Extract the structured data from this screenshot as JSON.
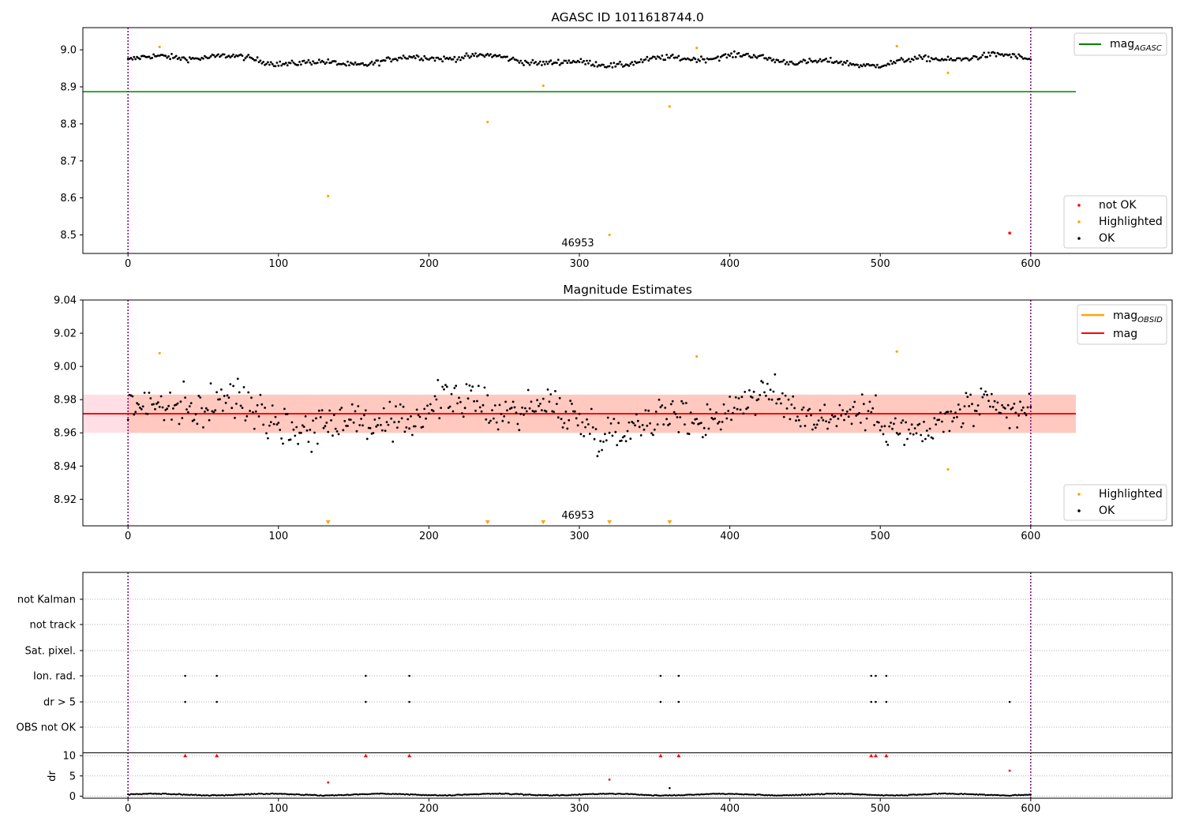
{
  "chart_data": [
    {
      "type": "scatter",
      "title": "AGASC ID 1011618744.0",
      "x_ticks": [
        0,
        100,
        200,
        300,
        400,
        500,
        600
      ],
      "y_ticks": [
        8.5,
        8.6,
        8.7,
        8.8,
        8.9,
        9.0
      ],
      "xlim": [
        -30,
        694
      ],
      "ylim": [
        8.45,
        9.06
      ],
      "grid": false,
      "obsid_boundaries": [
        0,
        600
      ],
      "obsid_label": "46953",
      "legend_upper": {
        "placement": "top-right",
        "entries": [
          {
            "base": "mag",
            "sub": "AGASC",
            "color": "#008000"
          }
        ]
      },
      "legend_lower": {
        "placement": "bottom-right",
        "entries": [
          {
            "label": "not OK",
            "color": "#ff0000"
          },
          {
            "label": "Highlighted",
            "color": "#ffa500"
          },
          {
            "label": "OK",
            "color": "#000000"
          }
        ]
      },
      "mag_agasc_line": {
        "y": 8.887,
        "x_range": [
          -30,
          630
        ]
      },
      "ok_series": {
        "name": "OK",
        "color": "#000000",
        "x_range": [
          0,
          600
        ],
        "mean": 8.972,
        "spread": 0.012
      },
      "highlighted": {
        "name": "Highlighted",
        "color": "#ffa500",
        "points": [
          [
            21,
            9.008
          ],
          [
            133,
            8.605
          ],
          [
            239,
            8.805
          ],
          [
            276,
            8.903
          ],
          [
            320,
            8.5
          ],
          [
            360,
            8.847
          ],
          [
            378,
            9.005
          ],
          [
            511,
            9.01
          ],
          [
            545,
            8.938
          ]
        ]
      },
      "not_ok": {
        "name": "not OK",
        "color": "#ff0000",
        "points": [
          [
            586,
            8.505
          ]
        ]
      }
    },
    {
      "type": "scatter",
      "title": "Magnitude Estimates",
      "x_ticks": [
        0,
        100,
        200,
        300,
        400,
        500,
        600
      ],
      "y_ticks": [
        8.92,
        8.94,
        8.96,
        8.98,
        9.0,
        9.02,
        9.04
      ],
      "xlim": [
        -30,
        694
      ],
      "ylim": [
        8.904,
        9.04
      ],
      "grid": false,
      "obsid_boundaries": [
        0,
        600
      ],
      "obsid_label": "46953",
      "legend_upper": {
        "placement": "top-right",
        "entries": [
          {
            "base": "mag",
            "sub": "OBSID",
            "color": "#ffa500"
          },
          {
            "base": "mag",
            "sub": "",
            "color": "#ff0000"
          }
        ]
      },
      "legend_lower": {
        "placement": "bottom-right",
        "entries": [
          {
            "label": "Highlighted",
            "color": "#ffa500"
          },
          {
            "label": "OK",
            "color": "#000000"
          }
        ]
      },
      "mag_line": {
        "y": 8.9715,
        "x_range": [
          -30,
          630
        ]
      },
      "mag_band": {
        "y_range": [
          8.96,
          8.983
        ],
        "x_range": [
          -30,
          630
        ]
      },
      "mag_obsid_band": {
        "y_range": [
          8.96,
          8.983
        ],
        "x_range": [
          0,
          630
        ]
      },
      "ok_series": {
        "name": "OK",
        "color": "#000000",
        "x_range": [
          0,
          600
        ],
        "mean": 8.971,
        "spread": 0.011
      },
      "highlighted": {
        "name": "Highlighted",
        "color": "#ffa500",
        "points": [
          [
            21,
            9.008
          ],
          [
            378,
            9.006
          ],
          [
            511,
            9.009
          ],
          [
            545,
            8.938
          ]
        ]
      },
      "below_range_markers": [
        133,
        239,
        276,
        320,
        360
      ]
    },
    {
      "type": "scatter",
      "title": "",
      "categories": [
        "not Kalman",
        "not track",
        "Sat. pixel.",
        "Ion. rad.",
        "dr > 5",
        "OBS not OK"
      ],
      "x_ticks": [
        0,
        100,
        200,
        300,
        400,
        500,
        600
      ],
      "xlim": [
        -30,
        694
      ],
      "grid": true,
      "flags": {
        "Ion. rad.": [
          38,
          59,
          158,
          187,
          354,
          366,
          494,
          497,
          504
        ],
        "dr > 5": [
          38,
          59,
          158,
          187,
          354,
          366,
          494,
          497,
          504,
          586
        ]
      }
    },
    {
      "type": "scatter",
      "title": "",
      "ylabel": "dr",
      "y_ticks": [
        0,
        5,
        10
      ],
      "x_ticks": [
        0,
        100,
        200,
        300,
        400,
        500,
        600
      ],
      "xlim": [
        -30,
        694
      ],
      "ylim": [
        -0.5,
        10.8
      ],
      "grid": true,
      "clipped_markers_at_10": [
        38,
        59,
        158,
        187,
        354,
        366,
        494,
        497,
        504
      ],
      "red_points": [
        [
          133,
          3.4
        ],
        [
          320,
          4.1
        ],
        [
          586,
          6.3
        ]
      ],
      "outlier_point": [
        360,
        2.0
      ],
      "baseline": {
        "mean": 0.4,
        "spread": 0.2,
        "x_range": [
          0,
          600
        ]
      }
    }
  ]
}
